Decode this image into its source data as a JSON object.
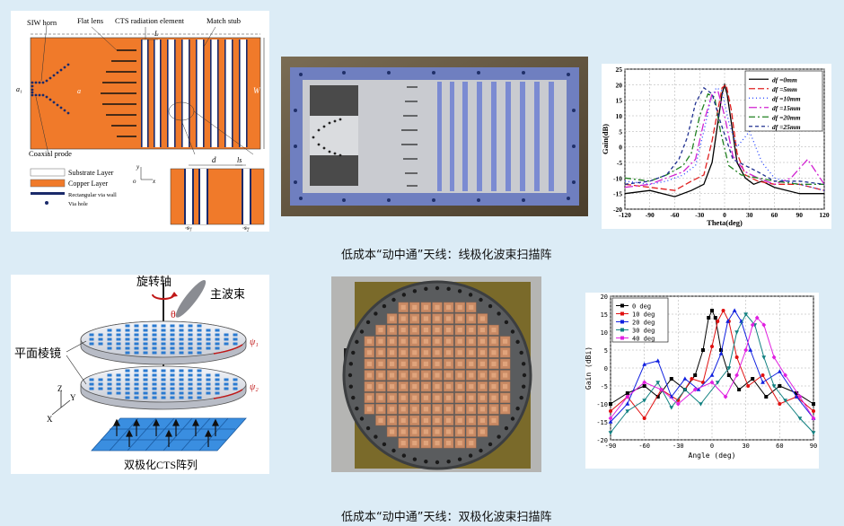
{
  "captions": {
    "row1": "低成本“动中通”天线：线极化波束扫描阵",
    "row2": "低成本“动中通”天线：双极化波束扫描阵"
  },
  "cts_diagram": {
    "labels": {
      "siw_horn": "SIW horn",
      "flat_lens": "Flat lens",
      "cts_element": "CTS radiation element",
      "match_stub": "Match stub",
      "coaxial_probe": "Coaxial prode",
      "a1": "a₁",
      "a": "a",
      "L": "L",
      "W": "W",
      "d": "d",
      "ls": "ls",
      "s1": "s₁",
      "s2": "s₂",
      "y": "y",
      "o": "o",
      "x": "x"
    },
    "legend": {
      "substrate": "Substrate Layer",
      "copper": "Copper Layer",
      "via_wall": "Rectangular via wall",
      "via_hole": "Via hole"
    },
    "colors": {
      "copper": "#f07a2a",
      "via": "#1a2a6a"
    }
  },
  "dual_diagram": {
    "labels": {
      "axis": "旋转轴",
      "beam": "主波束",
      "theta": "θ",
      "prism": "平面棱镜",
      "psi1": "ψ₁",
      "psi2": "ψ₂",
      "array": "双极化CTS阵列",
      "z": "Z",
      "y": "Y",
      "x": "X"
    }
  },
  "chart_data": [
    {
      "type": "line",
      "xlabel": "Theta(deg)",
      "ylabel": "Gain(dB)",
      "xlim": [
        -120,
        120
      ],
      "ylim": [
        -20,
        25
      ],
      "xticks": [
        -120,
        -90,
        -60,
        -30,
        0,
        30,
        60,
        90,
        120
      ],
      "yticks": [
        -20,
        -15,
        -10,
        -5,
        0,
        5,
        10,
        15,
        20,
        25
      ],
      "grid": true,
      "legend_position": "top-right",
      "series": [
        {
          "name": "df =0mm",
          "color": "#000000",
          "dash": "",
          "x": [
            -120,
            -90,
            -60,
            -40,
            -25,
            -15,
            -8,
            -3,
            0,
            3,
            8,
            15,
            25,
            35,
            45,
            60,
            90,
            120
          ],
          "y": [
            -15,
            -14,
            -16,
            -14,
            -12,
            -5,
            8,
            17,
            20,
            17,
            8,
            -5,
            -10,
            -12,
            -11,
            -13,
            -15,
            -15
          ]
        },
        {
          "name": "df =5mm",
          "color": "#e02020",
          "dash": "7,3",
          "x": [
            -120,
            -90,
            -60,
            -40,
            -25,
            -15,
            -8,
            -3,
            2,
            8,
            15,
            25,
            40,
            60,
            90,
            120
          ],
          "y": [
            -12,
            -13,
            -14,
            -11,
            -9,
            2,
            12,
            19,
            20,
            12,
            -2,
            -9,
            -11,
            -12,
            -12,
            -14
          ]
        },
        {
          "name": "df =10mm",
          "color": "#2040ff",
          "dash": "1,3",
          "x": [
            -120,
            -90,
            -70,
            -50,
            -35,
            -25,
            -17,
            -10,
            -3,
            5,
            15,
            30,
            45,
            60,
            90,
            120
          ],
          "y": [
            -11,
            -12,
            -11,
            -9,
            -6,
            5,
            15,
            19,
            18,
            8,
            0,
            5,
            -5,
            -10,
            -12,
            -14
          ]
        },
        {
          "name": "df =15mm",
          "color": "#d020d0",
          "dash": "9,3,2,3",
          "x": [
            -120,
            -90,
            -70,
            -50,
            -35,
            -25,
            -15,
            -8,
            0,
            10,
            25,
            40,
            60,
            80,
            100,
            120
          ],
          "y": [
            -13,
            -12,
            -10,
            -8,
            -4,
            8,
            17,
            18,
            10,
            -3,
            -8,
            -10,
            -12,
            -10,
            -4,
            -12
          ]
        },
        {
          "name": "df =20mm",
          "color": "#208020",
          "dash": "7,3,2,3",
          "x": [
            -120,
            -90,
            -70,
            -50,
            -40,
            -30,
            -20,
            -12,
            -5,
            5,
            20,
            40,
            60,
            90,
            120
          ],
          "y": [
            -10,
            -11,
            -9,
            -6,
            -2,
            10,
            17,
            16,
            5,
            -6,
            -9,
            -10,
            -11,
            -12,
            -12
          ]
        },
        {
          "name": "df =25mm",
          "color": "#203090",
          "dash": "4,3",
          "x": [
            -120,
            -90,
            -70,
            -55,
            -45,
            -35,
            -25,
            -15,
            -5,
            10,
            25,
            40,
            60,
            90,
            120
          ],
          "y": [
            -12,
            -11,
            -9,
            -4,
            3,
            14,
            19,
            17,
            8,
            -4,
            -6,
            -8,
            -11,
            -11,
            -12
          ]
        }
      ]
    },
    {
      "type": "line",
      "xlabel": "Angle (deg)",
      "ylabel": "Gain (dBi)",
      "xlim": [
        -90,
        90
      ],
      "ylim": [
        -20,
        20
      ],
      "xticks": [
        -90,
        -60,
        -30,
        0,
        30,
        60,
        90
      ],
      "yticks": [
        -20,
        -15,
        -10,
        -5,
        0,
        5,
        10,
        15,
        20
      ],
      "grid": true,
      "legend_position": "top-left",
      "series": [
        {
          "name": "0 deg",
          "color": "#000000",
          "marker": "square",
          "x": [
            -90,
            -75,
            -60,
            -48,
            -36,
            -24,
            -15,
            -8,
            -3,
            0,
            3,
            8,
            15,
            24,
            36,
            48,
            60,
            75,
            90
          ],
          "y": [
            -10,
            -7,
            -5,
            -8,
            -3,
            -6,
            -2,
            5,
            14,
            16,
            14,
            5,
            -2,
            -6,
            -3,
            -8,
            -5,
            -7,
            -10
          ]
        },
        {
          "name": "10 deg",
          "color": "#e01010",
          "marker": "circle",
          "x": [
            -90,
            -75,
            -60,
            -45,
            -30,
            -18,
            -8,
            0,
            5,
            10,
            15,
            22,
            32,
            45,
            60,
            75,
            90
          ],
          "y": [
            -12,
            -8,
            -14,
            -6,
            -9,
            -3,
            -4,
            6,
            13,
            16,
            13,
            3,
            -5,
            -2,
            -10,
            -8,
            -12
          ]
        },
        {
          "name": "20 deg",
          "color": "#1020e0",
          "marker": "triangle",
          "x": [
            -90,
            -75,
            -60,
            -48,
            -36,
            -24,
            -12,
            0,
            8,
            14,
            20,
            26,
            34,
            45,
            60,
            75,
            90
          ],
          "y": [
            -15,
            -10,
            1,
            2,
            -8,
            -3,
            -6,
            -2,
            4,
            13,
            16,
            13,
            5,
            -4,
            -1,
            -8,
            -14
          ]
        },
        {
          "name": "30 deg",
          "color": "#108080",
          "marker": "tri-down",
          "x": [
            -90,
            -75,
            -60,
            -48,
            -36,
            -24,
            -10,
            5,
            15,
            22,
            30,
            38,
            46,
            55,
            65,
            78,
            90
          ],
          "y": [
            -18,
            -12,
            -9,
            -4,
            -11,
            -6,
            -10,
            -4,
            0,
            10,
            15,
            12,
            3,
            -5,
            -9,
            -14,
            -18
          ]
        },
        {
          "name": "40 deg",
          "color": "#e020e0",
          "marker": "diamond",
          "x": [
            -90,
            -75,
            -60,
            -45,
            -30,
            -15,
            0,
            12,
            22,
            30,
            36,
            40,
            46,
            55,
            65,
            78,
            90
          ],
          "y": [
            -14,
            -8,
            -4,
            -6,
            -10,
            -6,
            -4,
            -8,
            -2,
            5,
            12,
            14,
            12,
            3,
            -2,
            -8,
            -14
          ]
        }
      ]
    }
  ]
}
